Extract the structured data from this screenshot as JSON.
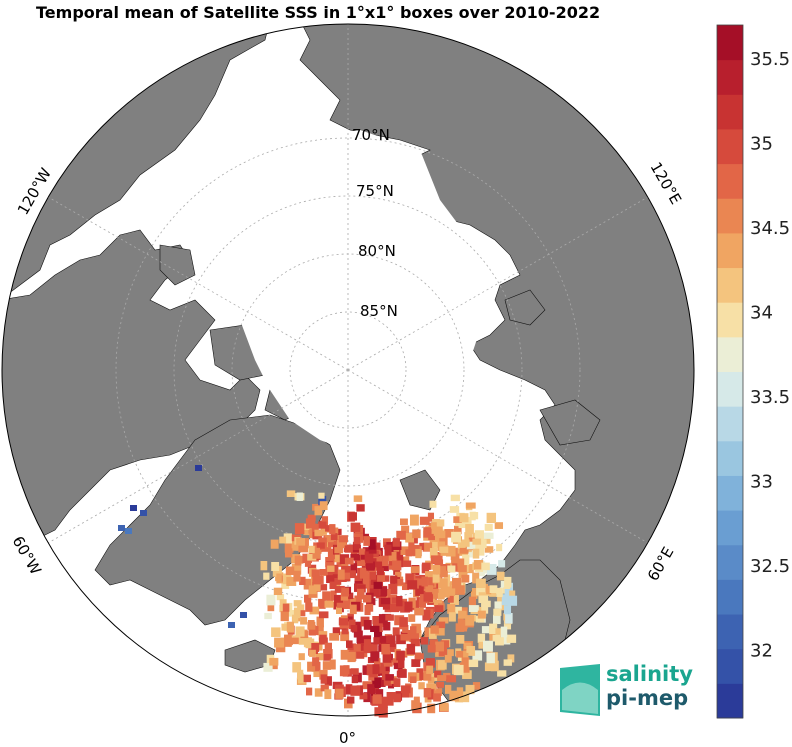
{
  "title": "Temporal mean of Satellite SSS in 1°x1° boxes over 2010-2022",
  "latitude_labels": [
    "70°N",
    "75°N",
    "80°N",
    "85°N"
  ],
  "longitude_labels": {
    "w120": "120°W",
    "e120": "120°E",
    "w60": "60°W",
    "e60": "60°E",
    "zero": "0°"
  },
  "colorbar": {
    "min": 31.6,
    "max": 35.7,
    "tick_labels": [
      "35.5",
      "35",
      "34.5",
      "34",
      "33.5",
      "33",
      "32.5",
      "32"
    ],
    "ticks": [
      35.5,
      35,
      34.5,
      34,
      33.5,
      33,
      32.5,
      32
    ],
    "colors_bottom_to_top": [
      "#2b3b99",
      "#3452a8",
      "#3d63b2",
      "#4a78be",
      "#5a8bc8",
      "#6a9ed2",
      "#80b2da",
      "#9ac6e0",
      "#b8d8e6",
      "#d6e9e8",
      "#ebeed6",
      "#f7e0a6",
      "#f4c47e",
      "#f0a562",
      "#ea8652",
      "#e26647",
      "#d64a3c",
      "#c83332",
      "#b81f2d",
      "#a50f27"
    ]
  },
  "colors": {
    "land": "#808080",
    "ocean": "#ffffff",
    "grid": "#aaaaaa"
  },
  "logo": {
    "line1": "salinity",
    "line2": "pi-mep"
  }
}
